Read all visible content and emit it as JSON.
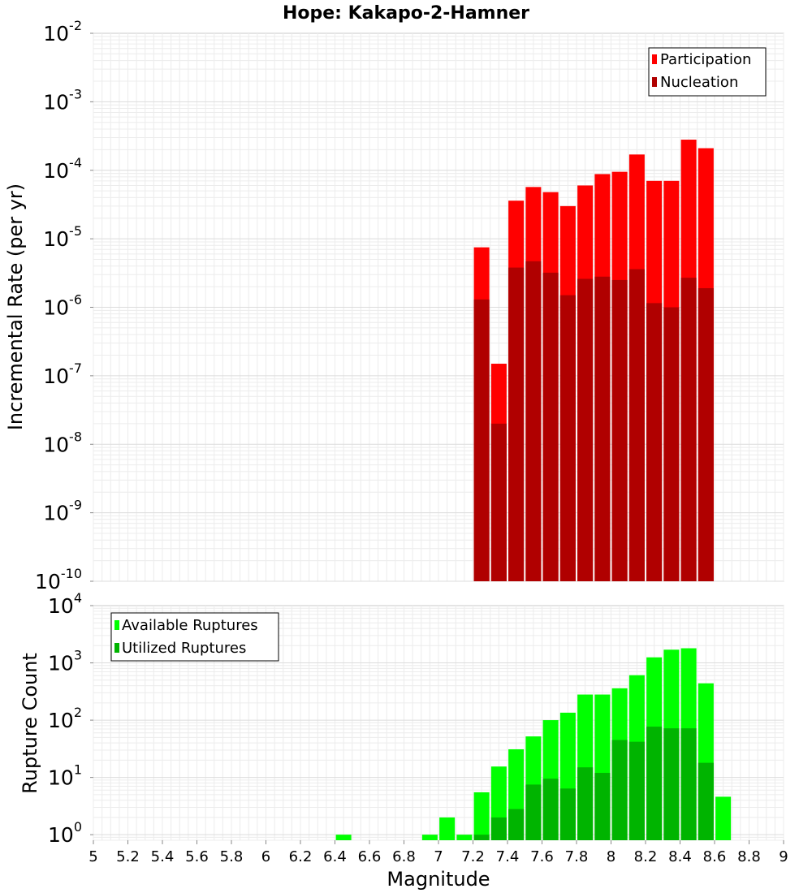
{
  "title": "Hope: Kakapo-2-Hamner",
  "chart_data": [
    {
      "type": "bar",
      "scale": "log",
      "ylabel": "Incremental Rate (per yr)",
      "ylim_exponents": [
        -10,
        -2
      ],
      "ytick_base": "10",
      "ytick_exponents": [
        "-10",
        "-9",
        "-8",
        "-7",
        "-6",
        "-5",
        "-4",
        "-3",
        "-2"
      ],
      "grid": true,
      "legend_position": "top-right",
      "legend": [
        "Participation",
        "Nucleation"
      ],
      "colors": {
        "participation": "#ff0000",
        "nucleation": "#b00000"
      },
      "x": [
        7.25,
        7.35,
        7.45,
        7.55,
        7.65,
        7.75,
        7.85,
        7.95,
        8.05,
        8.15,
        8.25,
        8.35,
        8.45,
        8.55
      ],
      "series": [
        {
          "name": "Participation",
          "values": [
            7.5e-06,
            1.5e-07,
            3.6e-05,
            5.7e-05,
            4.8e-05,
            3e-05,
            6e-05,
            8.8e-05,
            9.5e-05,
            0.00017,
            7e-05,
            7e-05,
            0.00028,
            0.00021
          ]
        },
        {
          "name": "Nucleation",
          "values": [
            1.3e-06,
            2e-08,
            3.8e-06,
            4.7e-06,
            3.2e-06,
            1.5e-06,
            2.6e-06,
            2.8e-06,
            2.5e-06,
            3.6e-06,
            1.15e-06,
            1e-06,
            2.7e-06,
            1.9e-06
          ]
        }
      ]
    },
    {
      "type": "bar",
      "scale": "log",
      "ylabel": "Rupture Count",
      "ylim": [
        0.8,
        10000
      ],
      "ytick_base": "10",
      "ytick_exponents": [
        "0",
        "1",
        "2",
        "3",
        "4"
      ],
      "xlabel": "Magnitude",
      "xlim": [
        5,
        9
      ],
      "xticks": [
        "5",
        "5.2",
        "5.4",
        "5.6",
        "5.8",
        "6",
        "6.2",
        "6.4",
        "6.6",
        "6.8",
        "7",
        "7.2",
        "7.4",
        "7.6",
        "7.8",
        "8",
        "8.2",
        "8.4",
        "8.6",
        "8.8",
        "9"
      ],
      "grid": true,
      "legend_position": "top-left",
      "legend": [
        "Available Ruptures",
        "Utilized Ruptures"
      ],
      "colors": {
        "available": "#00ff00",
        "utilized": "#00b400"
      },
      "x": [
        6.45,
        6.95,
        7.05,
        7.15,
        7.25,
        7.35,
        7.45,
        7.55,
        7.65,
        7.75,
        7.85,
        7.95,
        8.05,
        8.15,
        8.25,
        8.35,
        8.45,
        8.55,
        8.65
      ],
      "series": [
        {
          "name": "Available Ruptures",
          "values": [
            1,
            1,
            2,
            1,
            5.5,
            15.5,
            31,
            52,
            100,
            135,
            280,
            280,
            360,
            610,
            1250,
            1700,
            1800,
            440,
            4.6
          ]
        },
        {
          "name": "Utilized Ruptures",
          "values": [
            null,
            null,
            null,
            null,
            1,
            2,
            2.8,
            7.5,
            9.5,
            6.4,
            15,
            12,
            45,
            42,
            77,
            72,
            72,
            18,
            null
          ]
        }
      ]
    }
  ]
}
